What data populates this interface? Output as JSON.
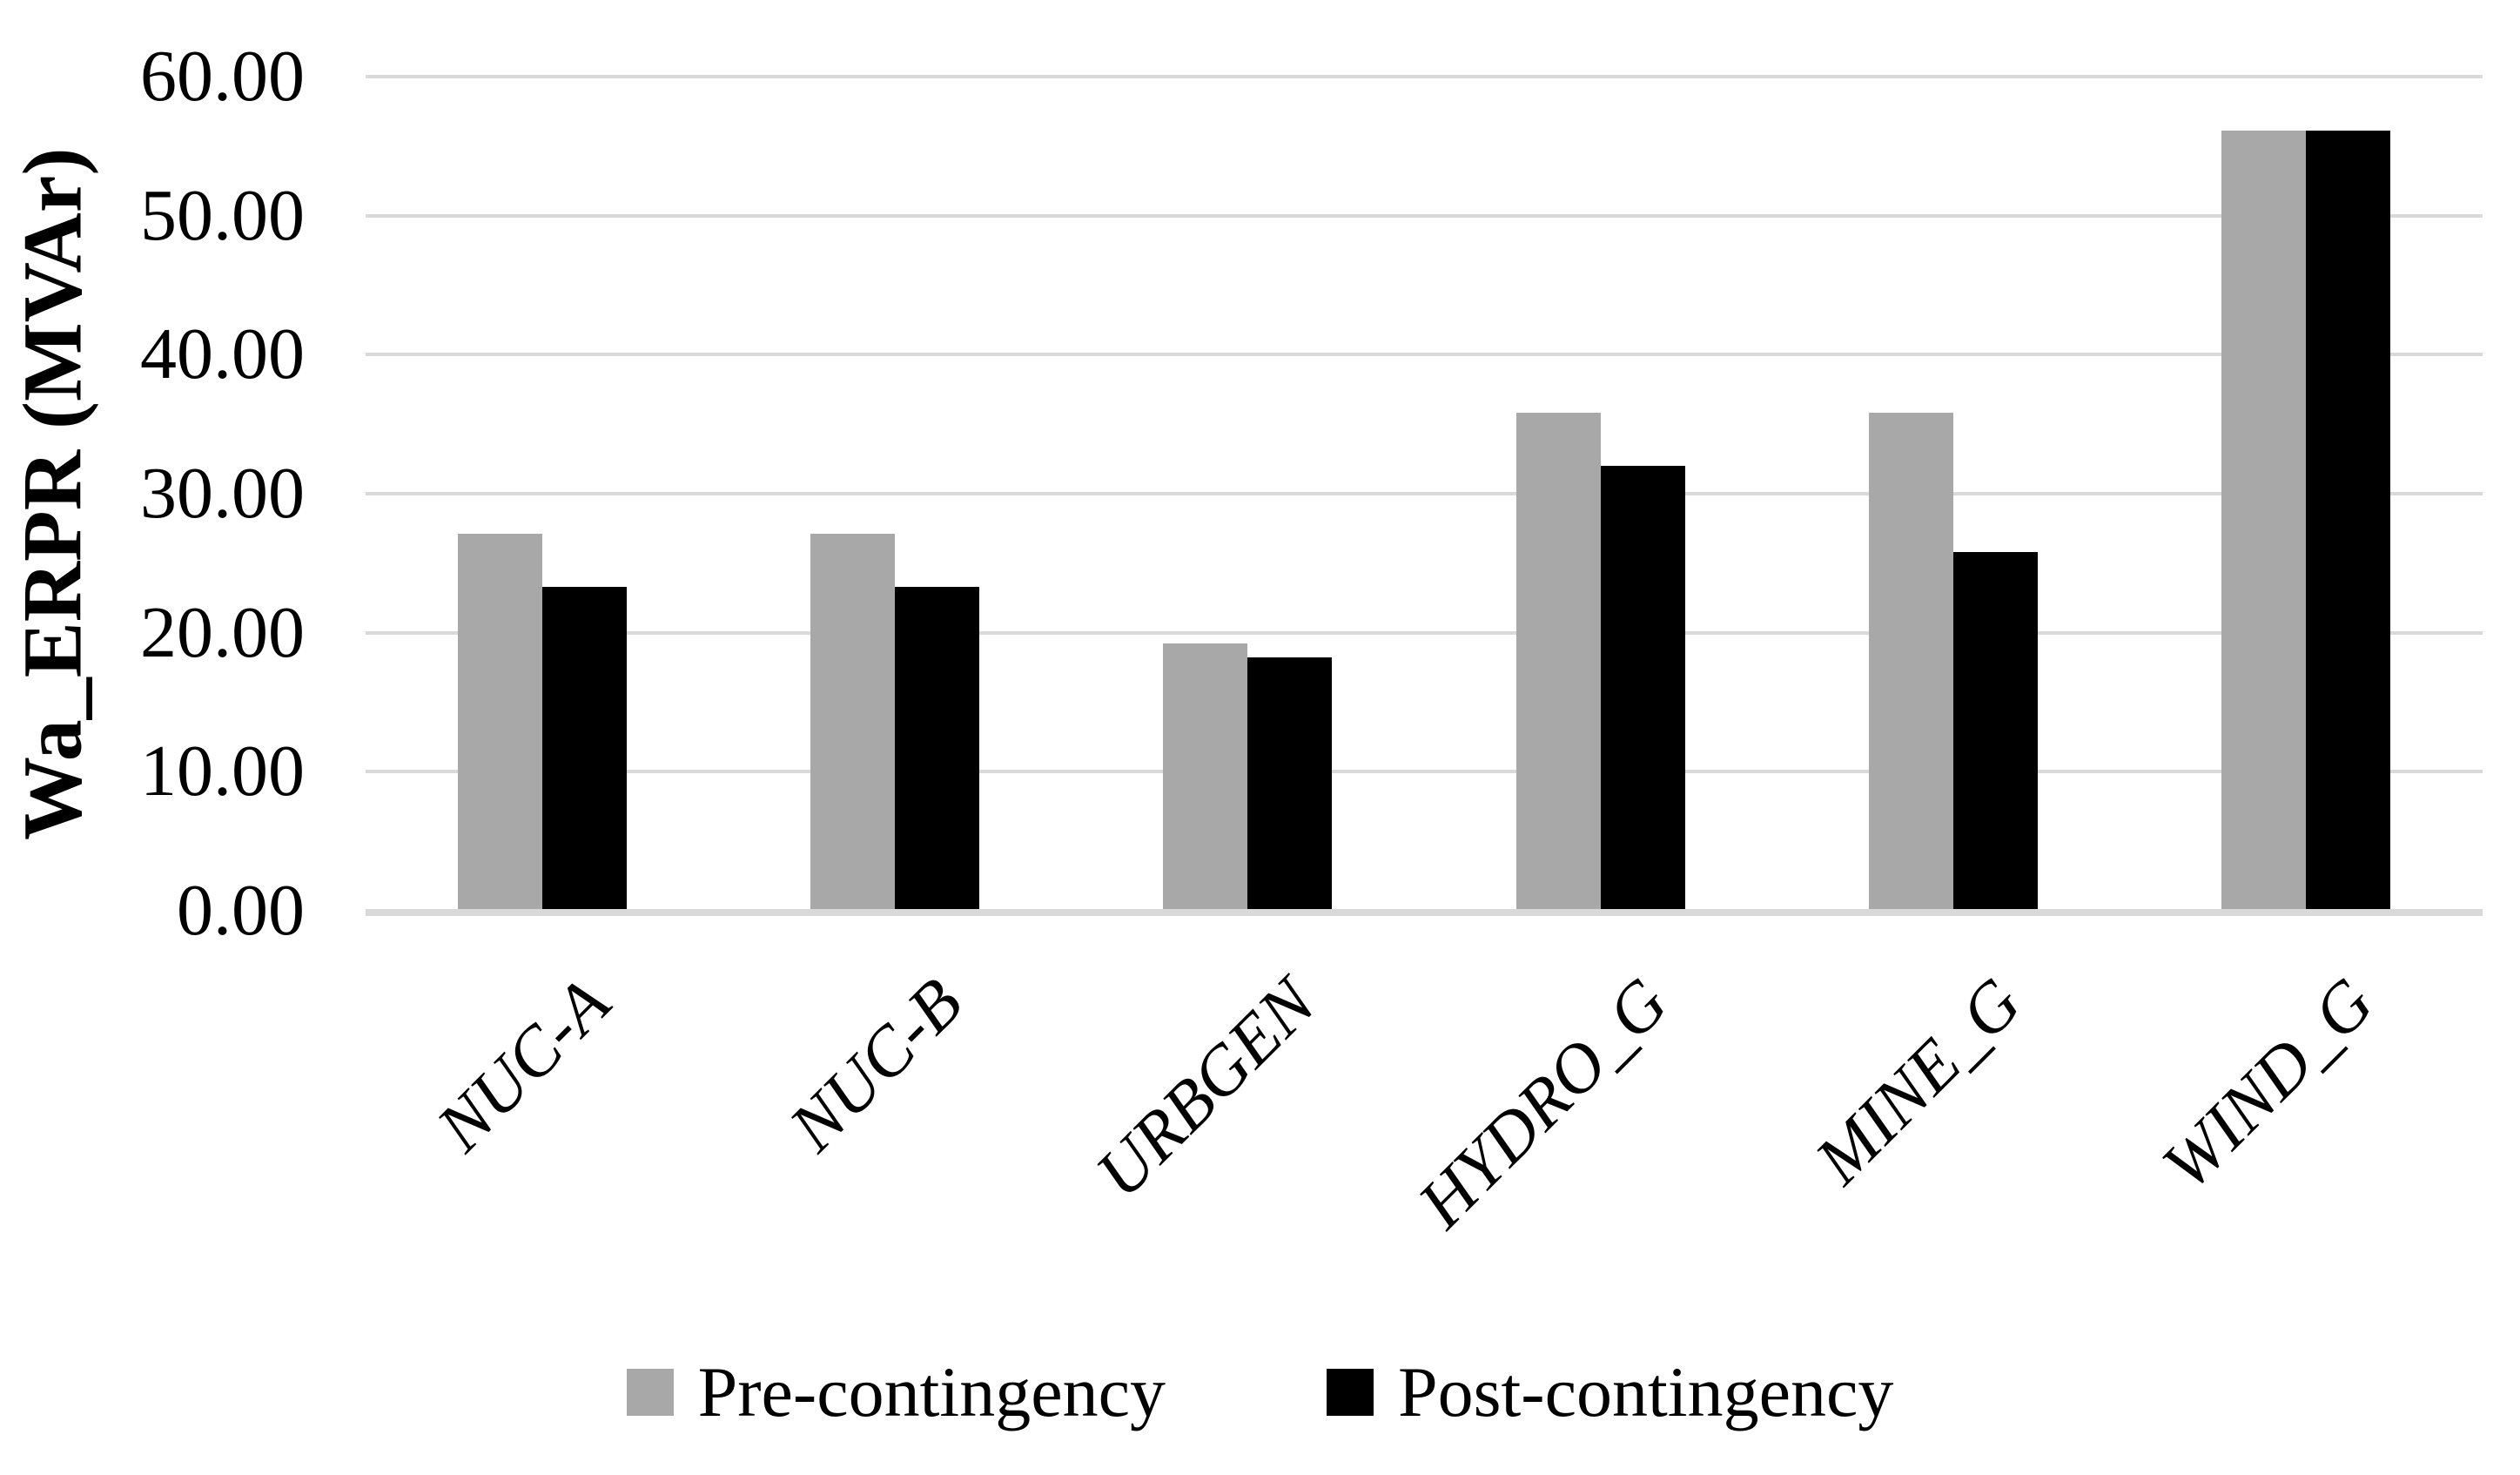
{
  "chart_data": {
    "type": "bar",
    "title": "",
    "xlabel": "",
    "ylabel": "Wa_ERPR (MVAr)",
    "ylim": [
      0,
      60
    ],
    "ytick_step": 10,
    "ytick_labels": [
      "0.00",
      "10.00",
      "20.00",
      "30.00",
      "40.00",
      "50.00",
      "60.00"
    ],
    "grid": "horizontal",
    "legend_position": "bottom",
    "categories": [
      "NUC-A",
      "NUC-B",
      "URBGEN",
      "HYDRO_G",
      "MINE_G",
      "WIND_G"
    ],
    "series": [
      {
        "name": "Pre-contingency",
        "color": "#a8a8a8",
        "values": [
          27.0,
          27.0,
          19.1,
          35.7,
          35.7,
          56.0
        ]
      },
      {
        "name": "Post-contingency",
        "color": "#000000",
        "values": [
          23.2,
          23.2,
          18.1,
          31.9,
          25.7,
          56.0
        ]
      }
    ]
  },
  "colors": {
    "background": "#ffffff",
    "gridline": "#d9d9d9",
    "axis_line": "#d9d9d9",
    "text": "#000000"
  }
}
